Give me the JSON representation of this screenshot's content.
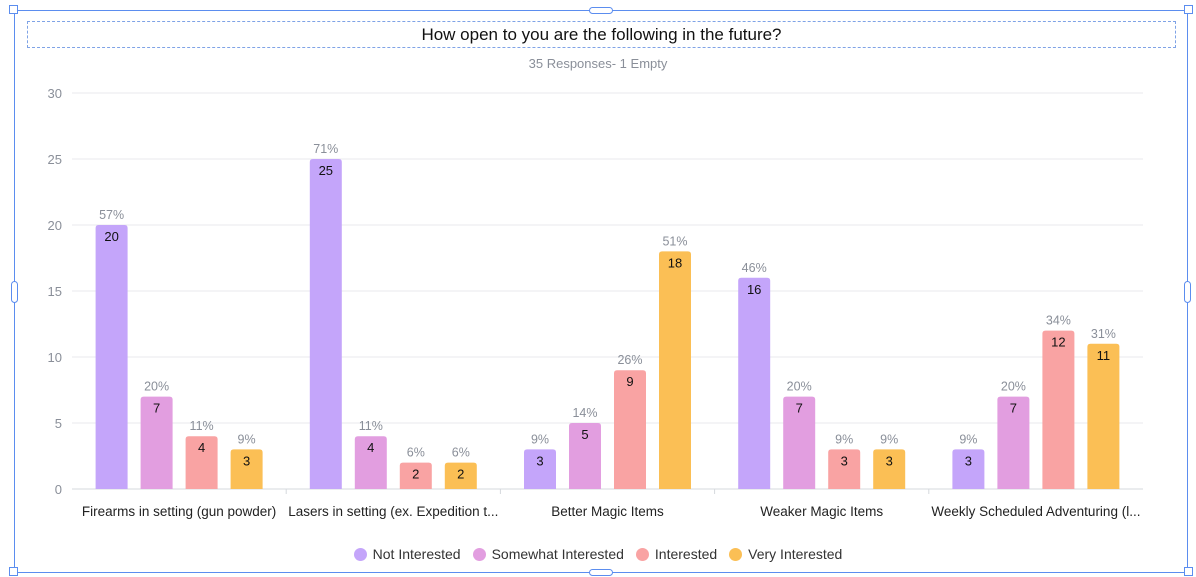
{
  "chart_data": {
    "type": "bar",
    "title": "How open to you are the following in the future?",
    "subtitle": "35 Responses- 1 Empty",
    "categories": [
      "Firearms in setting (gun powder)",
      "Lasers in setting (ex. Expedition t...",
      "Better Magic Items",
      "Weaker Magic Items",
      "Weekly Scheduled Adventuring (l..."
    ],
    "series": [
      {
        "name": "Not Interested",
        "color": "#c4a5fa",
        "values": [
          20,
          25,
          3,
          16,
          3
        ],
        "percents": [
          "57%",
          "71%",
          "9%",
          "46%",
          "9%"
        ]
      },
      {
        "name": "Somewhat Interested",
        "color": "#e29ee0",
        "values": [
          7,
          4,
          5,
          7,
          7
        ],
        "percents": [
          "20%",
          "11%",
          "14%",
          "20%",
          "20%"
        ]
      },
      {
        "name": "Interested",
        "color": "#f9a3a3",
        "values": [
          4,
          2,
          9,
          3,
          12
        ],
        "percents": [
          "11%",
          "6%",
          "26%",
          "9%",
          "34%"
        ]
      },
      {
        "name": "Very Interested",
        "color": "#fbbf55",
        "values": [
          3,
          2,
          18,
          3,
          11
        ],
        "percents": [
          "9%",
          "6%",
          "51%",
          "9%",
          "31%"
        ]
      }
    ],
    "ylim": [
      0,
      30
    ],
    "yticks": [
      0,
      5,
      10,
      15,
      20,
      25,
      30
    ],
    "grid": true,
    "legend_position": "bottom"
  }
}
